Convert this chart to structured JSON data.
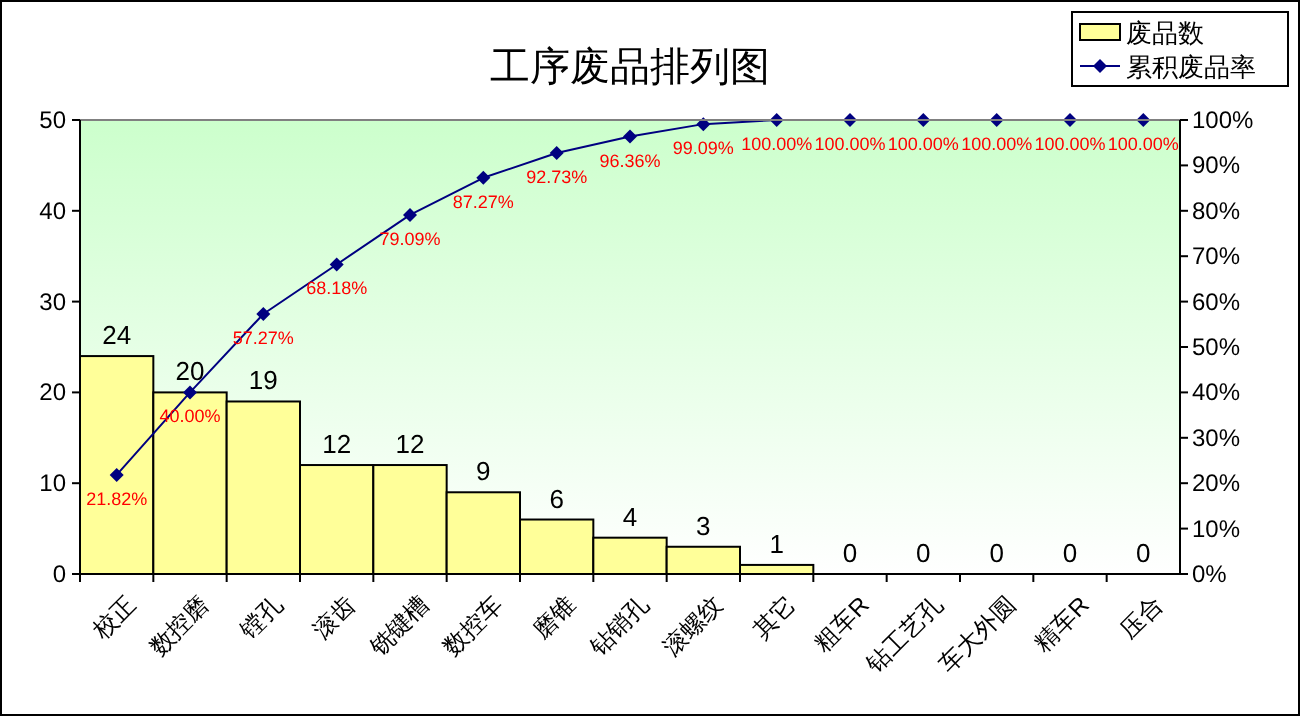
{
  "chart_data": {
    "type": "bar",
    "title": "工序废品排列图",
    "categories": [
      "校正",
      "数控磨",
      "镗孔",
      "滚齿",
      "铣键槽",
      "数控车",
      "磨锥",
      "钻销孔",
      "滚螺纹",
      "其它",
      "粗车R",
      "钻工艺孔",
      "车大外圆",
      "精车R",
      "压合"
    ],
    "series": [
      {
        "name": "废品数",
        "color": "#ffff99",
        "values": [
          24,
          20,
          19,
          12,
          12,
          9,
          6,
          4,
          3,
          1,
          0,
          0,
          0,
          0,
          0
        ],
        "value_labels": [
          "24",
          "20",
          "19",
          "12",
          "12",
          "9",
          "6",
          "4",
          "3",
          "1",
          "0",
          "0",
          "0",
          "0",
          "0"
        ]
      },
      {
        "name": "累积废品率",
        "type": "line",
        "axis": "y2",
        "color": "#000080",
        "marker": "diamond",
        "line_style": "solid",
        "values": [
          21.82,
          40.0,
          57.27,
          68.18,
          79.09,
          87.27,
          92.73,
          96.36,
          99.09,
          100,
          100,
          100,
          100,
          100,
          100
        ],
        "value_labels": [
          "21.82%",
          "40.00%",
          "57.27%",
          "68.18%",
          "79.09%",
          "87.27%",
          "92.73%",
          "96.36%",
          "99.09%",
          "100.00%",
          "100.00%",
          "100.00%",
          "100.00%",
          "100.00%",
          "100.00%"
        ]
      }
    ],
    "ylim": [
      0,
      50
    ],
    "yticks": [
      0,
      10,
      20,
      30,
      40,
      50
    ],
    "y2lim": [
      0,
      100
    ],
    "y2ticks": [
      {
        "value": 0,
        "label": "0%"
      },
      {
        "value": 10,
        "label": "10%"
      },
      {
        "value": 20,
        "label": "20%"
      },
      {
        "value": 30,
        "label": "30%"
      },
      {
        "value": 40,
        "label": "40%"
      },
      {
        "value": 50,
        "label": "50%"
      },
      {
        "value": 60,
        "label": "60%"
      },
      {
        "value": 70,
        "label": "70%"
      },
      {
        "value": 80,
        "label": "80%"
      },
      {
        "value": 90,
        "label": "90%"
      },
      {
        "value": 100,
        "label": "100%"
      }
    ],
    "legend": "top right"
  }
}
